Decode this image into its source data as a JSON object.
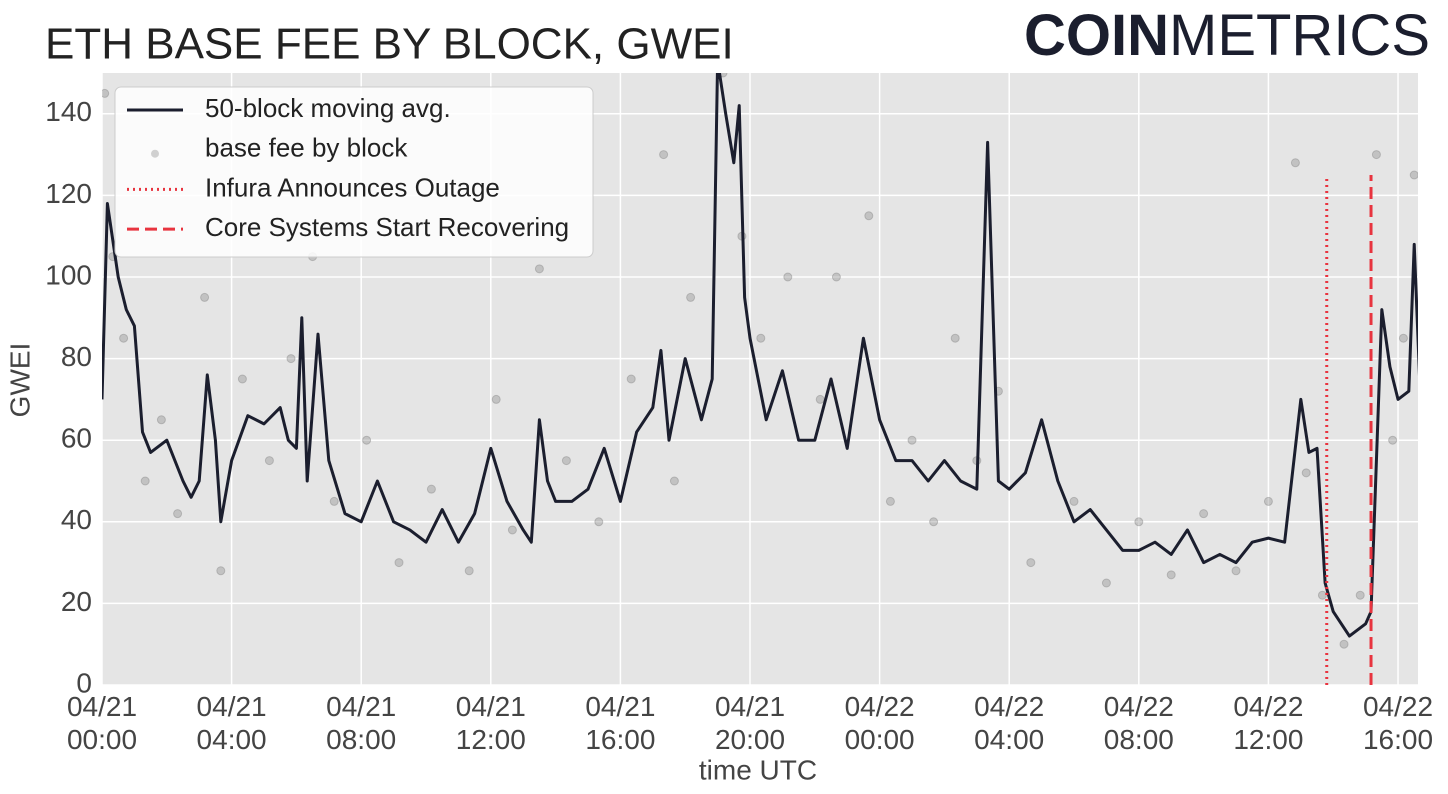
{
  "chart_data": {
    "type": "line",
    "title": "ETH BASE FEE BY BLOCK, GWEI",
    "logo": {
      "bold": "COIN",
      "light": "METRICS"
    },
    "x_label": "time UTC",
    "y_label": "GWEI",
    "xlim": [
      "04/21 00:00",
      "04/22 16:37"
    ],
    "xticks": [
      "04/21 00:00",
      "04/21 04:00",
      "04/21 08:00",
      "04/21 12:00",
      "04/21 16:00",
      "04/21 20:00",
      "04/22 00:00",
      "04/22 04:00",
      "04/22 08:00",
      "04/22 12:00",
      "04/22 16:00"
    ],
    "ylim": [
      0,
      150
    ],
    "yticks": [
      0,
      20,
      40,
      60,
      80,
      100,
      120,
      140
    ],
    "grid": true,
    "legend": "upper left",
    "series": [
      {
        "name": "50-block moving avg.",
        "type": "line",
        "color": "#1b1e2e",
        "x": [
          "04/21 00:00",
          "04/21 00:10",
          "04/21 00:30",
          "04/21 00:45",
          "04/21 01:00",
          "04/21 01:15",
          "04/21 01:30",
          "04/21 02:00",
          "04/21 02:30",
          "04/21 02:45",
          "04/21 03:00",
          "04/21 03:15",
          "04/21 03:30",
          "04/21 03:40",
          "04/21 04:00",
          "04/21 04:30",
          "04/21 05:00",
          "04/21 05:30",
          "04/21 05:45",
          "04/21 06:00",
          "04/21 06:10",
          "04/21 06:20",
          "04/21 06:40",
          "04/21 07:00",
          "04/21 07:30",
          "04/21 08:00",
          "04/21 08:30",
          "04/21 09:00",
          "04/21 09:30",
          "04/21 10:00",
          "04/21 10:30",
          "04/21 11:00",
          "04/21 11:30",
          "04/21 12:00",
          "04/21 12:30",
          "04/21 13:00",
          "04/21 13:15",
          "04/21 13:30",
          "04/21 13:45",
          "04/21 14:00",
          "04/21 14:30",
          "04/21 15:00",
          "04/21 15:30",
          "04/21 16:00",
          "04/21 16:30",
          "04/21 17:00",
          "04/21 17:15",
          "04/21 17:30",
          "04/21 18:00",
          "04/21 18:30",
          "04/21 18:50",
          "04/21 19:00",
          "04/21 19:15",
          "04/21 19:30",
          "04/21 19:40",
          "04/21 19:50",
          "04/21 20:00",
          "04/21 20:30",
          "04/21 21:00",
          "04/21 21:30",
          "04/21 22:00",
          "04/21 22:30",
          "04/21 23:00",
          "04/21 23:30",
          "04/22 00:00",
          "04/22 00:30",
          "04/22 01:00",
          "04/22 01:30",
          "04/22 02:00",
          "04/22 02:30",
          "04/22 03:00",
          "04/22 03:20",
          "04/22 03:40",
          "04/22 04:00",
          "04/22 04:30",
          "04/22 05:00",
          "04/22 05:30",
          "04/22 06:00",
          "04/22 06:30",
          "04/22 07:00",
          "04/22 07:30",
          "04/22 08:00",
          "04/22 08:30",
          "04/22 09:00",
          "04/22 09:30",
          "04/22 10:00",
          "04/22 10:30",
          "04/22 11:00",
          "04/22 11:30",
          "04/22 12:00",
          "04/22 12:30",
          "04/22 13:00",
          "04/22 13:15",
          "04/22 13:30",
          "04/22 13:45",
          "04/22 14:00",
          "04/22 14:30",
          "04/22 15:00",
          "04/22 15:10",
          "04/22 15:30",
          "04/22 15:45",
          "04/22 16:00",
          "04/22 16:20",
          "04/22 16:30",
          "04/22 16:40"
        ],
        "values": [
          70,
          118,
          100,
          92,
          88,
          62,
          57,
          60,
          50,
          46,
          50,
          76,
          60,
          40,
          55,
          66,
          64,
          68,
          60,
          58,
          90,
          50,
          86,
          55,
          42,
          40,
          50,
          40,
          38,
          35,
          43,
          35,
          42,
          58,
          45,
          38,
          35,
          65,
          50,
          45,
          45,
          48,
          58,
          45,
          62,
          68,
          82,
          60,
          80,
          65,
          75,
          153,
          140,
          128,
          142,
          95,
          85,
          65,
          77,
          60,
          60,
          75,
          58,
          85,
          65,
          55,
          55,
          50,
          55,
          50,
          48,
          133,
          50,
          48,
          52,
          65,
          50,
          40,
          43,
          38,
          33,
          33,
          35,
          32,
          38,
          30,
          32,
          30,
          35,
          36,
          35,
          70,
          57,
          58,
          25,
          18,
          12,
          15,
          18,
          92,
          78,
          70,
          72,
          108,
          75
        ]
      },
      {
        "name": "base fee by block",
        "type": "scatter",
        "color": "#808080",
        "x": [
          "04/21 00:05",
          "04/21 00:20",
          "04/21 00:40",
          "04/21 01:20",
          "04/21 01:50",
          "04/21 02:20",
          "04/21 03:10",
          "04/21 03:40",
          "04/21 04:20",
          "04/21 05:10",
          "04/21 05:50",
          "04/21 06:30",
          "04/21 07:10",
          "04/21 08:10",
          "04/21 09:10",
          "04/21 10:10",
          "04/21 11:20",
          "04/21 12:10",
          "04/21 12:40",
          "04/21 13:30",
          "04/21 14:20",
          "04/21 15:20",
          "04/21 16:20",
          "04/21 17:20",
          "04/21 17:40",
          "04/21 18:10",
          "04/21 19:10",
          "04/21 19:45",
          "04/21 20:20",
          "04/21 21:10",
          "04/21 22:10",
          "04/21 22:40",
          "04/21 23:40",
          "04/22 00:20",
          "04/22 01:00",
          "04/22 01:40",
          "04/22 02:20",
          "04/22 03:00",
          "04/22 03:40",
          "04/22 04:40",
          "04/22 06:00",
          "04/22 07:00",
          "04/22 08:00",
          "04/22 09:00",
          "04/22 10:00",
          "04/22 11:00",
          "04/22 12:00",
          "04/22 12:50",
          "04/22 13:10",
          "04/22 13:40",
          "04/22 14:20",
          "04/22 14:50",
          "04/22 15:20",
          "04/22 15:50",
          "04/22 16:10",
          "04/22 16:30"
        ],
        "values": [
          145,
          105,
          85,
          50,
          65,
          42,
          95,
          28,
          75,
          55,
          80,
          105,
          45,
          60,
          30,
          48,
          28,
          70,
          38,
          102,
          55,
          40,
          75,
          130,
          50,
          95,
          150,
          110,
          85,
          100,
          70,
          100,
          115,
          45,
          60,
          40,
          85,
          55,
          72,
          30,
          45,
          25,
          40,
          27,
          42,
          28,
          45,
          128,
          52,
          22,
          10,
          22,
          130,
          60,
          85,
          125
        ]
      }
    ],
    "annotations": [
      {
        "name": "Infura Announces Outage",
        "x": "04/22 13:48",
        "top": 125,
        "color": "#e8343f",
        "style": "dotted"
      },
      {
        "name": "Core Systems Start Recovering",
        "x": "04/22 15:10",
        "top": 125,
        "color": "#e8343f",
        "style": "dashed"
      }
    ]
  }
}
